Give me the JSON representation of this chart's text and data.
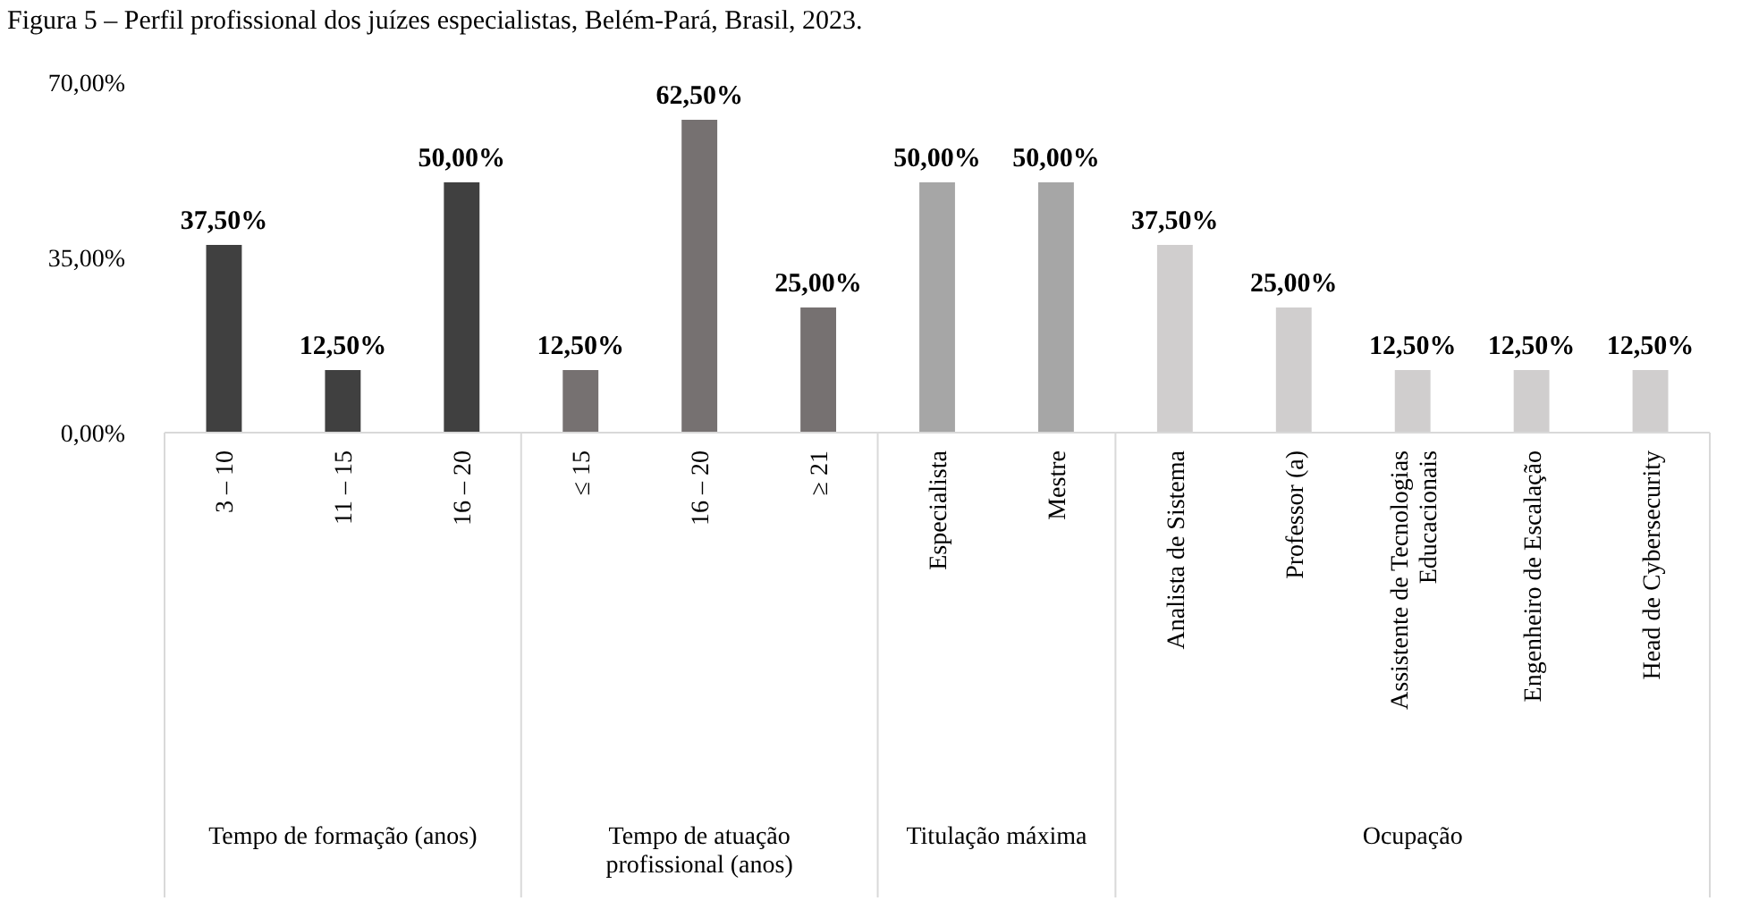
{
  "chart_data": {
    "type": "bar",
    "title": "Figura 5 – Perfil profissional dos juízes especialistas, Belém-Pará, Brasil, 2023.",
    "categories": [
      "3 – 10",
      "11 – 15",
      "16 – 20",
      "≤ 15",
      "16 – 20",
      "≥ 21",
      "Especialista",
      "Mestre",
      "Analista de Sistema",
      "Professor (a)",
      "Assistente de Tecnologias Educacionais",
      "Engenheiro de Escalação",
      "Head de Cybersecurity"
    ],
    "series": [
      {
        "color": "#404040",
        "values": [
          37.5,
          12.5,
          50,
          null,
          null,
          null,
          null,
          null,
          null,
          null,
          null,
          null,
          null
        ],
        "value_labels": [
          "37,50%",
          "12,50%",
          "50,00%",
          null,
          null,
          null,
          null,
          null,
          null,
          null,
          null,
          null,
          null
        ]
      },
      {
        "color": "#767171",
        "values": [
          null,
          null,
          null,
          12.5,
          62.5,
          25,
          null,
          null,
          null,
          null,
          null,
          null,
          null
        ],
        "value_labels": [
          null,
          null,
          null,
          "12,50%",
          "62,50%",
          "25,00%",
          null,
          null,
          null,
          null,
          null,
          null,
          null
        ]
      },
      {
        "color": "#a6a6a6",
        "values": [
          null,
          null,
          null,
          null,
          null,
          null,
          50,
          50,
          null,
          null,
          null,
          null,
          null
        ],
        "value_labels": [
          null,
          null,
          null,
          null,
          null,
          null,
          "50,00%",
          "50,00%",
          null,
          null,
          null,
          null,
          null
        ]
      },
      {
        "color": "#d0cece",
        "values": [
          null,
          null,
          null,
          null,
          null,
          null,
          null,
          null,
          37.5,
          25,
          12.5,
          12.5,
          12.5
        ],
        "value_labels": [
          null,
          null,
          null,
          null,
          null,
          null,
          null,
          null,
          "37,50%",
          "25,00%",
          "12,50%",
          "12,50%",
          "12,50%"
        ]
      }
    ],
    "ylim": [
      0,
      70
    ],
    "yticks": [
      {
        "value": 0,
        "label": "0,00%"
      },
      {
        "value": 35,
        "label": "35,00%"
      },
      {
        "value": 70,
        "label": "70,00%"
      }
    ],
    "annotations": [
      "Tempo de formação (anos)",
      "Tempo de atuação profissional (anos)",
      "Titulação máxima",
      "Ocupação"
    ],
    "grid": false
  }
}
